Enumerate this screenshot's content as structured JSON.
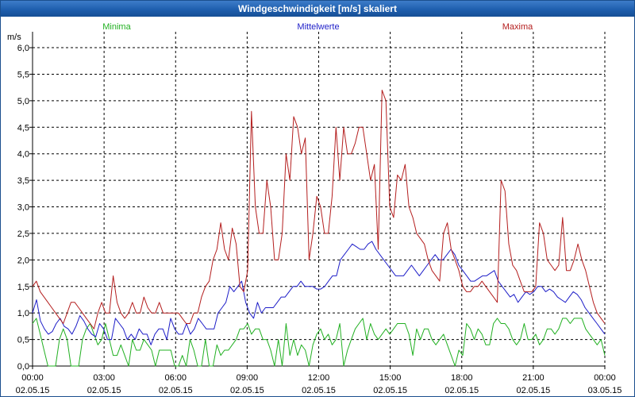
{
  "window": {
    "title": "Windgeschwindigkeit [m/s] skaliert"
  },
  "chart_data": {
    "type": "line",
    "title": "Windgeschwindigkeit [m/s] skaliert",
    "ylabel": "m/s",
    "xlabel": "",
    "ylim": [
      0,
      6.3
    ],
    "xlim": [
      0,
      144
    ],
    "y_ticks": [
      "0,0",
      "0,5",
      "1,0",
      "1,5",
      "2,0",
      "2,5",
      "3,0",
      "3,5",
      "4,0",
      "4,5",
      "5,0",
      "5,5",
      "6,0"
    ],
    "x_ticks": [
      {
        "time": "00:00",
        "date": "02.05.15"
      },
      {
        "time": "03:00",
        "date": "02.05.15"
      },
      {
        "time": "06:00",
        "date": "02.05.15"
      },
      {
        "time": "09:00",
        "date": "02.05.15"
      },
      {
        "time": "12:00",
        "date": "02.05.15"
      },
      {
        "time": "15:00",
        "date": "02.05.15"
      },
      {
        "time": "18:00",
        "date": "02.05.15"
      },
      {
        "time": "21:00",
        "date": "02.05.15"
      },
      {
        "time": "00:00",
        "date": "03.05.15"
      }
    ],
    "grid": true,
    "legend_position": "top",
    "series": [
      {
        "name": "Minima",
        "color": "#22b022",
        "values": [
          0.8,
          0.9,
          0.6,
          0.3,
          0,
          0,
          0,
          0.5,
          0.7,
          0.5,
          0,
          0,
          0,
          0.5,
          0.7,
          0.8,
          0.6,
          0.4,
          0.5,
          0.8,
          0.5,
          0.2,
          0.2,
          0.4,
          0.2,
          0,
          0.5,
          0.3,
          0.3,
          0.5,
          0.4,
          0.3,
          0,
          0.3,
          0.3,
          0.3,
          0.3,
          0,
          0,
          0.2,
          0,
          0.5,
          0.3,
          0,
          0,
          0.5,
          0,
          0,
          0.4,
          0.2,
          0.3,
          0.3,
          0.4,
          0.5,
          0.7,
          0.7,
          0.8,
          0.6,
          0.7,
          0.7,
          0.5,
          0.5,
          0.3,
          0,
          0.5,
          0,
          0.8,
          0.2,
          0.5,
          0.2,
          0.4,
          0.3,
          0,
          0.4,
          0.6,
          0.7,
          0.5,
          0.6,
          0.4,
          0.5,
          0.8,
          0,
          0.3,
          0.5,
          0.7,
          0.8,
          0.9,
          0.5,
          0.8,
          0.6,
          0.5,
          0.6,
          0.7,
          0.6,
          0.7,
          0.8,
          0.8,
          0.8,
          0.6,
          0.2,
          0.7,
          0.5,
          0.7,
          0.7,
          0.5,
          0.4,
          0.5,
          0.6,
          0.4,
          0.2,
          0,
          0.3,
          0.2,
          0.8,
          0.7,
          0.5,
          0.7,
          0.6,
          0.4,
          0.4,
          0.8,
          0.9,
          0.8,
          0.8,
          0.7,
          0.5,
          0.4,
          0.5,
          0.8,
          0.5,
          0.5,
          0.6,
          0.4,
          0.5,
          0.7,
          0.7,
          0.6,
          0.7,
          0.9,
          0.9,
          0.8,
          0.9,
          0.9,
          0.9,
          0.7,
          0.6,
          0.5,
          0.4,
          0.5,
          0.2
        ]
      },
      {
        "name": "Mittelwerte",
        "color": "#1e1ec8",
        "values": [
          1.0,
          1.25,
          0.85,
          0.7,
          0.6,
          0.65,
          0.8,
          0.9,
          0.75,
          0.7,
          0.6,
          0.75,
          0.95,
          0.85,
          0.7,
          0.6,
          0.55,
          0.8,
          0.7,
          0.5,
          0.5,
          0.9,
          0.8,
          0.7,
          0.5,
          0.6,
          0.5,
          0.7,
          0.6,
          0.6,
          0.4,
          0.6,
          0.7,
          0.7,
          0.5,
          0.9,
          0.7,
          0.6,
          0.6,
          0.8,
          0.6,
          0.7,
          0.9,
          0.8,
          0.7,
          0.7,
          0.7,
          1.0,
          1.1,
          1.2,
          1.5,
          1.4,
          1.5,
          1.6,
          1.2,
          1.0,
          0.9,
          1.2,
          1.0,
          1.1,
          1.1,
          1.1,
          1.2,
          1.3,
          1.3,
          1.4,
          1.5,
          1.5,
          1.6,
          1.5,
          1.5,
          1.5,
          1.45,
          1.45,
          1.5,
          1.6,
          1.7,
          1.7,
          2.0,
          2.1,
          2.2,
          2.3,
          2.25,
          2.2,
          2.2,
          2.3,
          2.35,
          2.2,
          2.1,
          2.0,
          1.9,
          1.8,
          1.7,
          1.7,
          1.7,
          1.8,
          1.9,
          1.8,
          1.7,
          1.8,
          1.9,
          2.0,
          2.1,
          2.0,
          2.0,
          2.1,
          2.2,
          2.1,
          1.9,
          1.8,
          1.7,
          1.6,
          1.6,
          1.65,
          1.7,
          1.7,
          1.75,
          1.8,
          1.6,
          1.5,
          1.4,
          1.3,
          1.35,
          1.2,
          1.3,
          1.4,
          1.35,
          1.4,
          1.5,
          1.5,
          1.4,
          1.45,
          1.4,
          1.3,
          1.25,
          1.2,
          1.3,
          1.4,
          1.35,
          1.25,
          1.1,
          1.0,
          0.9,
          0.8,
          0.7,
          0.6
        ]
      },
      {
        "name": "Maxima",
        "color": "#b41e1e",
        "values": [
          1.5,
          1.6,
          1.4,
          1.3,
          1.2,
          1.1,
          1.0,
          0.9,
          0.8,
          1.0,
          1.2,
          1.2,
          1.1,
          1.0,
          0.9,
          0.8,
          0.7,
          1.0,
          1.2,
          1.0,
          1.0,
          1.7,
          1.2,
          1.0,
          0.9,
          1.0,
          1.2,
          1.0,
          1.0,
          1.3,
          1.1,
          1.0,
          1.0,
          1.2,
          1.0,
          1.0,
          1.0,
          1.0,
          1.0,
          0.9,
          0.8,
          0.8,
          1.0,
          1.0,
          1.3,
          1.5,
          1.6,
          2.0,
          2.2,
          2.7,
          2.2,
          2.0,
          2.6,
          2.3,
          1.5,
          1.4,
          1.8,
          4.8,
          3.0,
          2.5,
          2.5,
          3.5,
          3.0,
          2.0,
          2.0,
          2.5,
          4.0,
          3.5,
          4.7,
          4.5,
          4.0,
          4.3,
          2.0,
          2.5,
          3.2,
          3.0,
          2.5,
          2.5,
          3.2,
          4.5,
          3.5,
          4.5,
          4.0,
          4.0,
          4.2,
          4.5,
          4.5,
          4.0,
          3.5,
          3.8,
          2.2,
          5.2,
          5.0,
          3.0,
          2.8,
          3.6,
          3.5,
          3.8,
          3.0,
          2.8,
          2.5,
          2.4,
          2.3,
          2.0,
          1.8,
          1.7,
          1.6,
          2.5,
          2.7,
          2.2,
          2.0,
          1.8,
          1.5,
          1.4,
          1.4,
          1.5,
          1.5,
          1.6,
          1.5,
          1.4,
          1.3,
          1.2,
          3.5,
          3.3,
          2.3,
          1.9,
          1.8,
          1.6,
          1.4,
          1.4,
          1.4,
          1.5,
          2.7,
          2.5,
          2.0,
          1.9,
          1.8,
          1.9,
          2.8,
          1.8,
          1.8,
          2.0,
          2.3,
          2.0,
          1.8,
          1.5,
          1.2,
          1.0,
          0.9,
          0.8
        ]
      }
    ]
  }
}
